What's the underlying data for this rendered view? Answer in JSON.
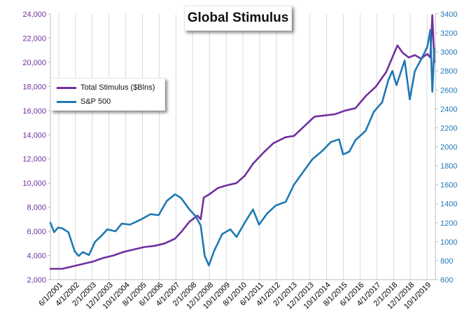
{
  "chart_data": {
    "type": "line",
    "title": "Global Stimulus",
    "x_tick_labels": [
      "6/1/2001",
      "4/1/2002",
      "2/1/2003",
      "12/1/2003",
      "10/1/2004",
      "8/1/2005",
      "6/1/2006",
      "4/1/2007",
      "2/1/2008",
      "12/1/2008",
      "10/1/2009",
      "8/1/2010",
      "6/1/2011",
      "4/1/2012",
      "2/1/2013",
      "12/1/2013",
      "10/1/2014",
      "8/1/2015",
      "6/1/2016",
      "4/1/2017",
      "2/1/2018",
      "12/1/2018",
      "10/1/2019"
    ],
    "x_range": [
      2001.42,
      2020.2
    ],
    "y_left": {
      "ticks": [
        "2,000",
        "4,000",
        "6,000",
        "8,000",
        "10,000",
        "12,000",
        "14,000",
        "16,000",
        "18,000",
        "20,000",
        "22,000",
        "24,000"
      ],
      "range": [
        2000,
        24000
      ],
      "tick_color": "#7030a0"
    },
    "y_right": {
      "ticks": [
        "600",
        "800",
        "1000",
        "1200",
        "1400",
        "1600",
        "1800",
        "2000",
        "2200",
        "2400",
        "2600",
        "2800",
        "3000",
        "3200",
        "3400"
      ],
      "range": [
        600,
        3400
      ],
      "tick_color": "#1f78b4"
    },
    "grid": "vertical",
    "legend_position": "upper-left",
    "series": [
      {
        "name": "Total Stimulus ($Blns)",
        "axis": "left",
        "color": "#7030a0",
        "points": [
          [
            2001.42,
            2900
          ],
          [
            2002.0,
            2900
          ],
          [
            2002.5,
            3100
          ],
          [
            2003.0,
            3300
          ],
          [
            2003.5,
            3500
          ],
          [
            2004.0,
            3800
          ],
          [
            2004.5,
            4000
          ],
          [
            2005.0,
            4300
          ],
          [
            2005.5,
            4500
          ],
          [
            2006.0,
            4700
          ],
          [
            2006.5,
            4800
          ],
          [
            2007.0,
            5000
          ],
          [
            2007.5,
            5400
          ],
          [
            2007.83,
            6000
          ],
          [
            2008.2,
            6800
          ],
          [
            2008.6,
            7300
          ],
          [
            2008.75,
            7000
          ],
          [
            2008.9,
            8800
          ],
          [
            2009.2,
            9100
          ],
          [
            2009.6,
            9600
          ],
          [
            2010.0,
            9800
          ],
          [
            2010.5,
            10000
          ],
          [
            2010.9,
            10600
          ],
          [
            2011.3,
            11600
          ],
          [
            2011.8,
            12500
          ],
          [
            2012.3,
            13300
          ],
          [
            2012.9,
            13800
          ],
          [
            2013.3,
            13900
          ],
          [
            2013.8,
            14700
          ],
          [
            2014.3,
            15500
          ],
          [
            2014.8,
            15600
          ],
          [
            2015.3,
            15700
          ],
          [
            2015.8,
            16000
          ],
          [
            2016.3,
            16200
          ],
          [
            2016.8,
            17200
          ],
          [
            2017.3,
            18000
          ],
          [
            2017.8,
            19200
          ],
          [
            2018.2,
            20800
          ],
          [
            2018.35,
            21400
          ],
          [
            2018.6,
            20800
          ],
          [
            2018.9,
            20400
          ],
          [
            2019.2,
            20600
          ],
          [
            2019.5,
            20300
          ],
          [
            2019.8,
            20700
          ],
          [
            2019.95,
            20400
          ],
          [
            2020.05,
            23900
          ],
          [
            2020.15,
            20000
          ]
        ]
      },
      {
        "name": "S&P 500",
        "axis": "right",
        "color": "#1f78b4",
        "points": [
          [
            2001.42,
            1200
          ],
          [
            2001.6,
            1100
          ],
          [
            2001.8,
            1150
          ],
          [
            2002.0,
            1140
          ],
          [
            2002.3,
            1100
          ],
          [
            2002.6,
            900
          ],
          [
            2002.8,
            850
          ],
          [
            2003.0,
            890
          ],
          [
            2003.3,
            860
          ],
          [
            2003.6,
            1000
          ],
          [
            2003.9,
            1060
          ],
          [
            2004.2,
            1130
          ],
          [
            2004.6,
            1110
          ],
          [
            2004.9,
            1190
          ],
          [
            2005.3,
            1180
          ],
          [
            2005.8,
            1230
          ],
          [
            2006.3,
            1290
          ],
          [
            2006.7,
            1280
          ],
          [
            2007.1,
            1430
          ],
          [
            2007.5,
            1500
          ],
          [
            2007.8,
            1460
          ],
          [
            2008.2,
            1340
          ],
          [
            2008.5,
            1270
          ],
          [
            2008.75,
            1170
          ],
          [
            2008.95,
            850
          ],
          [
            2009.15,
            750
          ],
          [
            2009.4,
            900
          ],
          [
            2009.8,
            1080
          ],
          [
            2010.2,
            1130
          ],
          [
            2010.5,
            1050
          ],
          [
            2010.9,
            1200
          ],
          [
            2011.3,
            1340
          ],
          [
            2011.6,
            1180
          ],
          [
            2012.0,
            1300
          ],
          [
            2012.4,
            1380
          ],
          [
            2012.9,
            1420
          ],
          [
            2013.3,
            1600
          ],
          [
            2013.8,
            1750
          ],
          [
            2014.2,
            1870
          ],
          [
            2014.7,
            1960
          ],
          [
            2015.1,
            2050
          ],
          [
            2015.5,
            2080
          ],
          [
            2015.7,
            1920
          ],
          [
            2016.0,
            1950
          ],
          [
            2016.3,
            2070
          ],
          [
            2016.8,
            2170
          ],
          [
            2017.2,
            2370
          ],
          [
            2017.6,
            2470
          ],
          [
            2017.9,
            2700
          ],
          [
            2018.1,
            2800
          ],
          [
            2018.3,
            2650
          ],
          [
            2018.7,
            2910
          ],
          [
            2018.95,
            2500
          ],
          [
            2019.2,
            2800
          ],
          [
            2019.5,
            2920
          ],
          [
            2019.8,
            3050
          ],
          [
            2019.95,
            3230
          ],
          [
            2020.05,
            2580
          ],
          [
            2020.15,
            3040
          ]
        ]
      }
    ]
  }
}
